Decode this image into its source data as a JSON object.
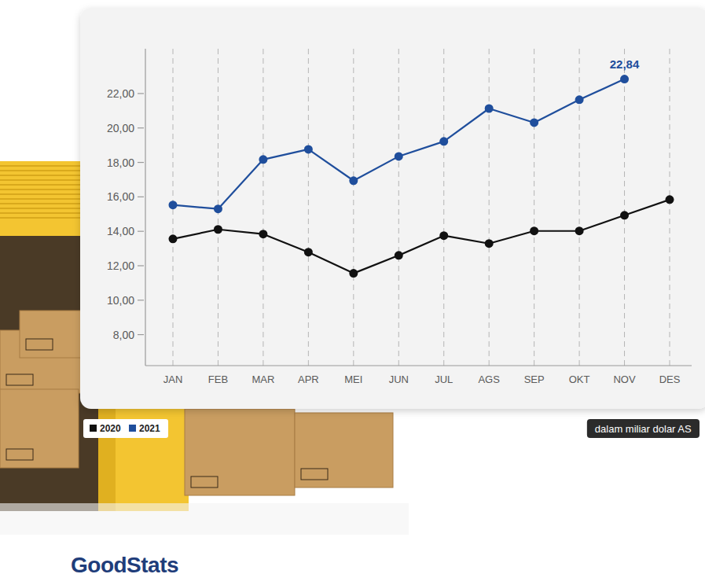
{
  "chart_data": {
    "type": "line",
    "categories": [
      "JAN",
      "FEB",
      "MAR",
      "APR",
      "MEI",
      "JUN",
      "JUL",
      "AGS",
      "SEP",
      "OKT",
      "NOV",
      "DES"
    ],
    "series": [
      {
        "name": "2020",
        "color": "#111111",
        "marker": "circle",
        "values": [
          13.56,
          14.11,
          13.84,
          12.79,
          11.56,
          12.6,
          13.75,
          13.29,
          14.02,
          14.02,
          14.93,
          15.84
        ]
      },
      {
        "name": "2021",
        "color": "#1f4e9c",
        "marker": "circle",
        "values": [
          15.53,
          15.3,
          18.17,
          18.76,
          16.94,
          18.35,
          19.22,
          21.13,
          20.31,
          21.64,
          22.84,
          null
        ],
        "value_labels": [
          null,
          null,
          null,
          null,
          null,
          null,
          null,
          null,
          null,
          null,
          "22,84",
          null
        ]
      }
    ],
    "ylim": [
      6.2,
      24.6
    ],
    "yticks": [
      {
        "value": 8,
        "label": "8,00"
      },
      {
        "value": 10,
        "label": "10,00"
      },
      {
        "value": 12,
        "label": "12,00"
      },
      {
        "value": 14,
        "label": "14,00"
      },
      {
        "value": 16,
        "label": "16,00"
      },
      {
        "value": 18,
        "label": "18,00"
      },
      {
        "value": 20,
        "label": "20,00"
      },
      {
        "value": 22,
        "label": "22,00"
      }
    ],
    "grid": true,
    "legend": "bottom-left",
    "note": "dalam miliar dolar AS",
    "logo": "GoodStats"
  }
}
